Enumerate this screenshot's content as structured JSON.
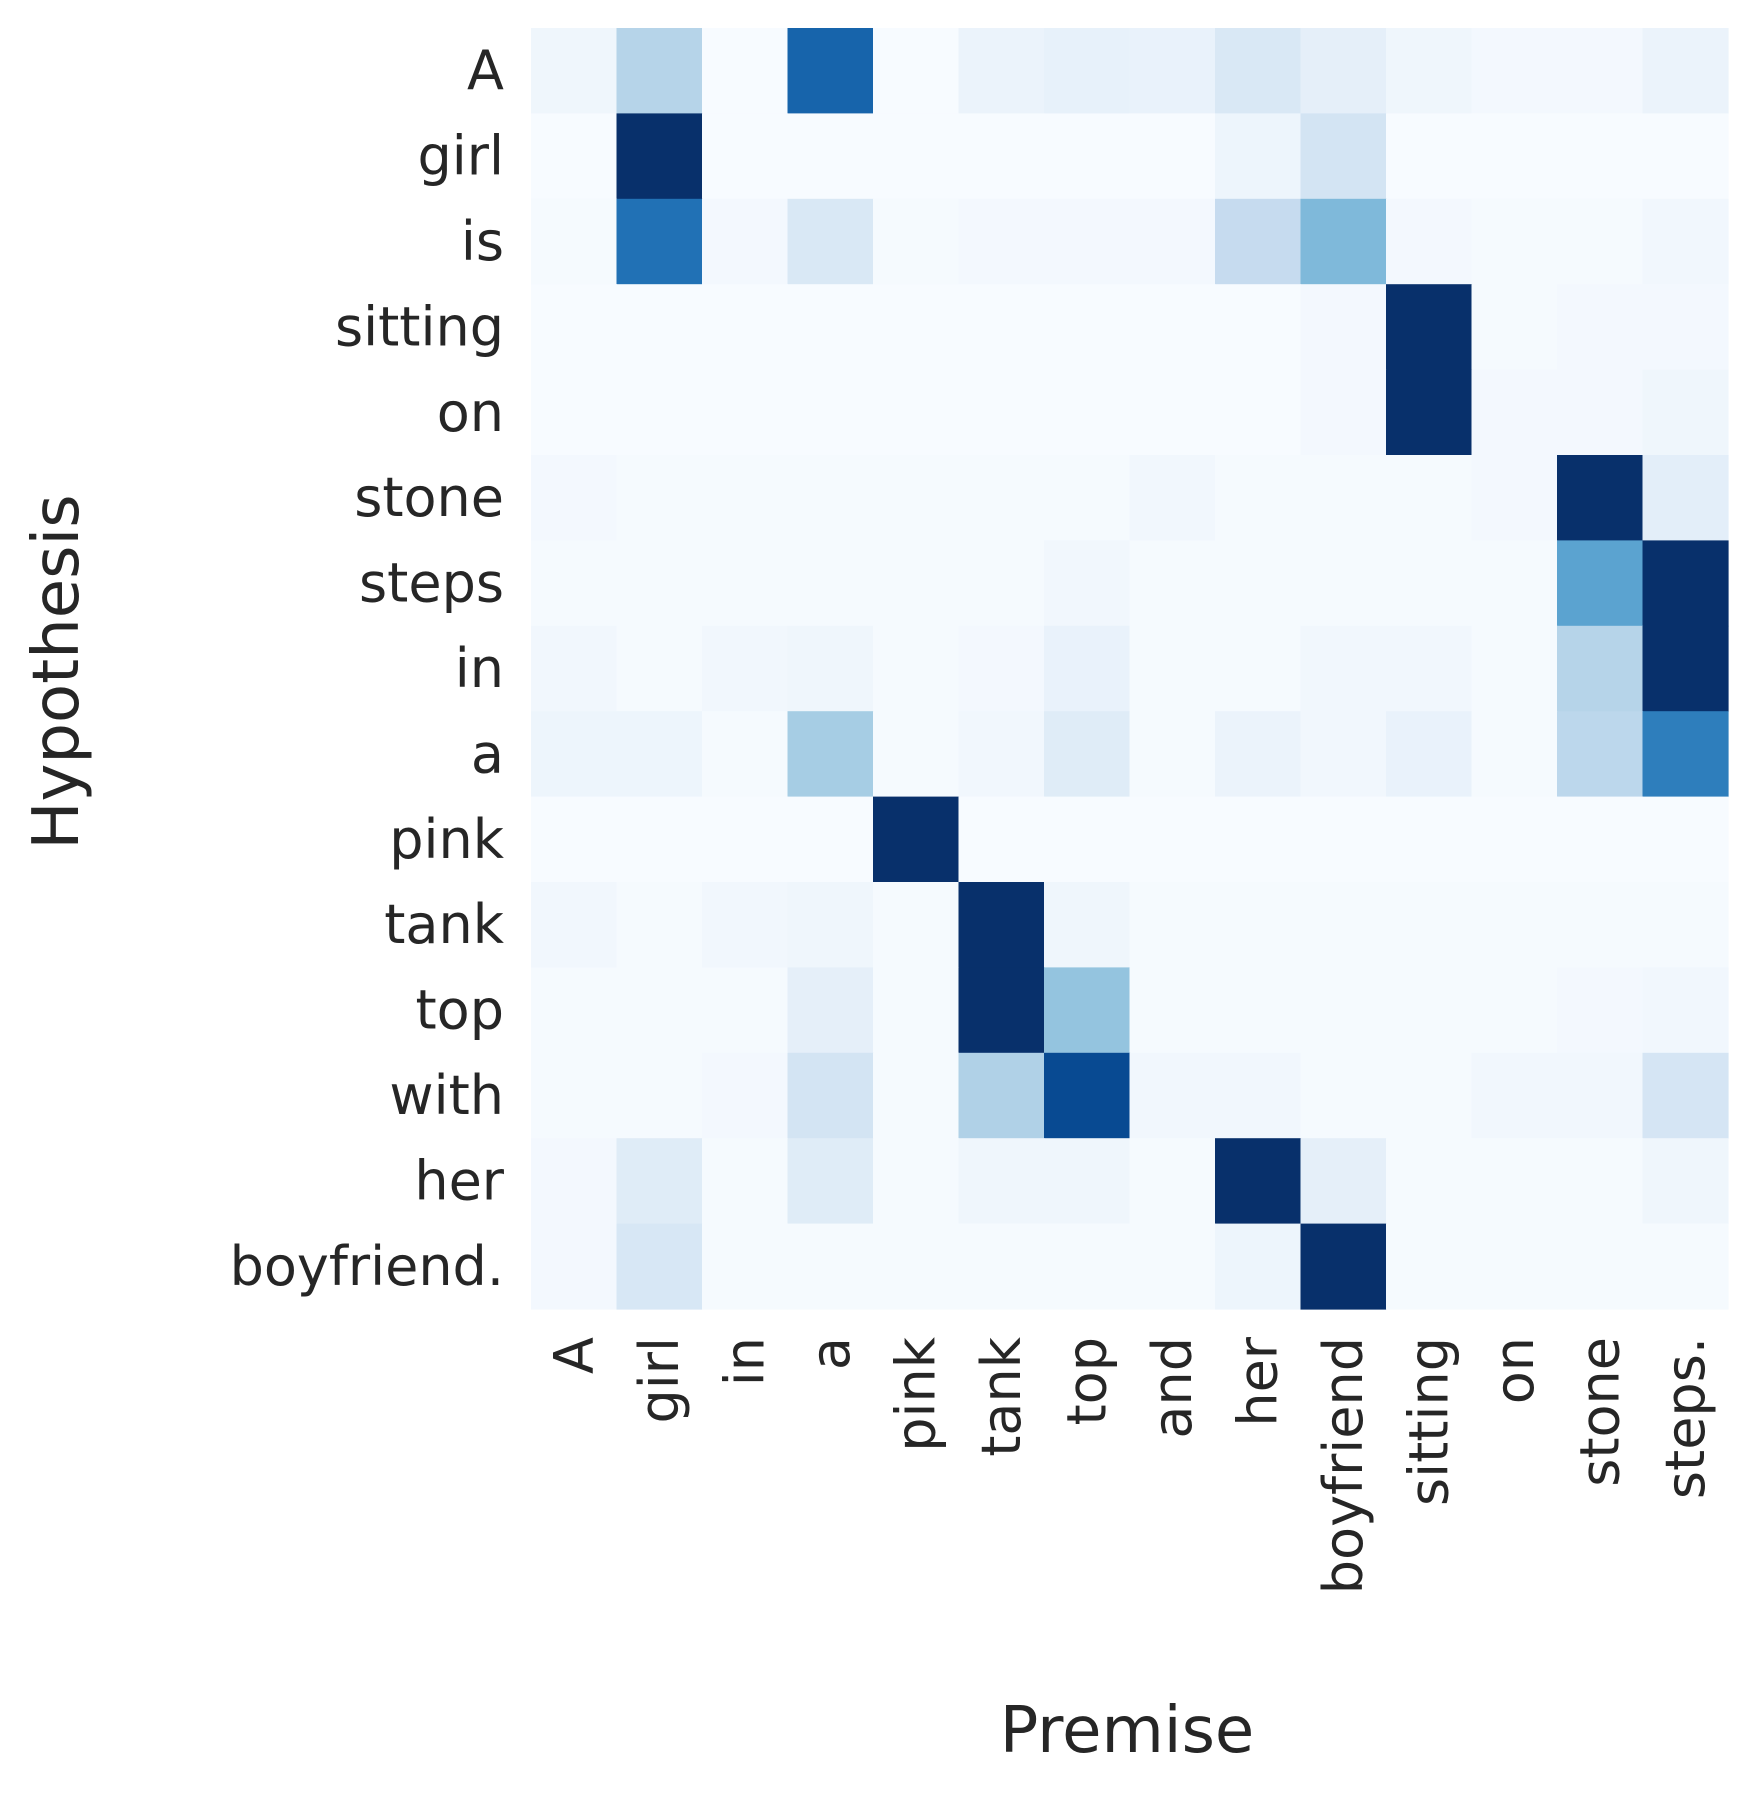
{
  "chart_data": {
    "type": "heatmap",
    "title": "",
    "xlabel": "Premise",
    "ylabel": "Hypothesis",
    "colormap": "Blues",
    "value_range": [
      0,
      1
    ],
    "colorbar": false,
    "x_labels": [
      "A",
      "girl",
      "in",
      "a",
      "pink",
      "tank",
      "top",
      "and",
      "her",
      "boyfriend",
      "sitting",
      "on",
      "stone",
      "steps."
    ],
    "y_labels": [
      "A",
      "girl",
      "is",
      "sitting",
      "on",
      "stone",
      "steps",
      "in",
      "a",
      "pink",
      "tank",
      "top",
      "with",
      "her",
      "boyfriend."
    ],
    "values": [
      [
        0.04,
        0.3,
        0.0,
        0.8,
        0.0,
        0.06,
        0.08,
        0.07,
        0.15,
        0.09,
        0.04,
        0.02,
        0.02,
        0.06
      ],
      [
        0.0,
        1.0,
        0.0,
        0.0,
        0.0,
        0.0,
        0.0,
        0.0,
        0.05,
        0.18,
        0.0,
        0.0,
        0.0,
        0.0
      ],
      [
        0.01,
        0.75,
        0.02,
        0.15,
        0.01,
        0.02,
        0.02,
        0.02,
        0.25,
        0.45,
        0.02,
        0.01,
        0.01,
        0.03
      ],
      [
        0.0,
        0.0,
        0.0,
        0.0,
        0.0,
        0.0,
        0.0,
        0.0,
        0.0,
        0.02,
        1.0,
        0.01,
        0.02,
        0.02
      ],
      [
        0.0,
        0.0,
        0.0,
        0.0,
        0.0,
        0.0,
        0.0,
        0.0,
        0.0,
        0.02,
        1.0,
        0.02,
        0.02,
        0.04
      ],
      [
        0.02,
        0.01,
        0.01,
        0.01,
        0.01,
        0.01,
        0.01,
        0.03,
        0.01,
        0.01,
        0.01,
        0.02,
        1.0,
        0.1
      ],
      [
        0.01,
        0.01,
        0.01,
        0.01,
        0.01,
        0.01,
        0.03,
        0.01,
        0.01,
        0.01,
        0.01,
        0.01,
        0.55,
        1.0
      ],
      [
        0.03,
        0.01,
        0.03,
        0.04,
        0.01,
        0.02,
        0.07,
        0.01,
        0.01,
        0.03,
        0.03,
        0.01,
        0.3,
        1.0
      ],
      [
        0.05,
        0.05,
        0.01,
        0.35,
        0.01,
        0.03,
        0.12,
        0.01,
        0.06,
        0.03,
        0.07,
        0.01,
        0.28,
        0.7
      ],
      [
        0.0,
        0.0,
        0.0,
        0.0,
        1.0,
        0.0,
        0.0,
        0.0,
        0.0,
        0.0,
        0.0,
        0.0,
        0.0,
        0.0
      ],
      [
        0.03,
        0.01,
        0.03,
        0.04,
        0.01,
        1.0,
        0.04,
        0.01,
        0.01,
        0.01,
        0.01,
        0.01,
        0.01,
        0.01
      ],
      [
        0.01,
        0.01,
        0.01,
        0.09,
        0.01,
        1.0,
        0.4,
        0.01,
        0.01,
        0.01,
        0.01,
        0.01,
        0.02,
        0.03
      ],
      [
        0.01,
        0.01,
        0.02,
        0.18,
        0.01,
        0.32,
        0.9,
        0.03,
        0.03,
        0.01,
        0.01,
        0.03,
        0.03,
        0.17
      ],
      [
        0.02,
        0.12,
        0.01,
        0.12,
        0.01,
        0.04,
        0.04,
        0.01,
        1.0,
        0.09,
        0.01,
        0.01,
        0.01,
        0.04
      ],
      [
        0.02,
        0.16,
        0.01,
        0.01,
        0.01,
        0.01,
        0.01,
        0.01,
        0.05,
        1.0,
        0.01,
        0.01,
        0.01,
        0.01
      ]
    ]
  }
}
